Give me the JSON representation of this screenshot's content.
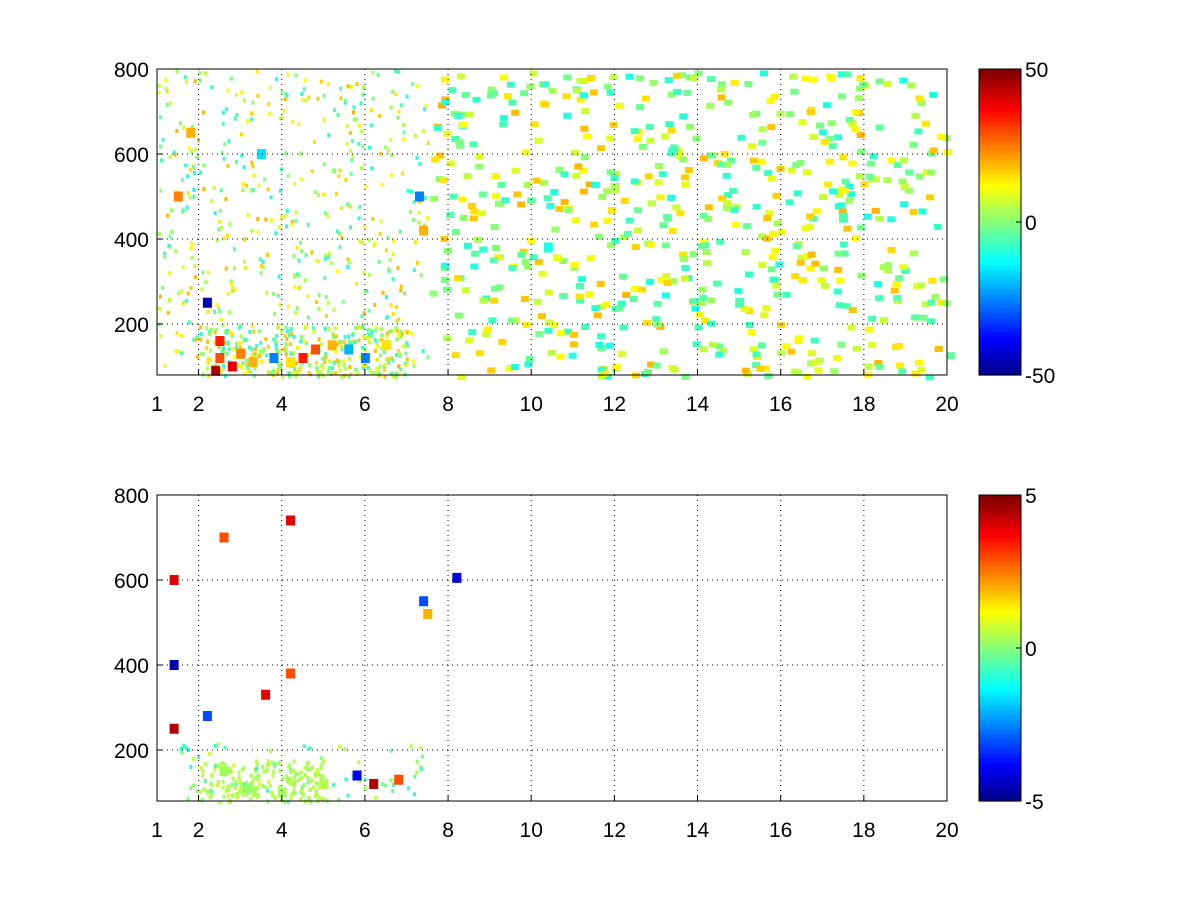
{
  "figure": {
    "background": "#ffffff"
  },
  "chart_data": [
    {
      "type": "heatmap",
      "title": "",
      "xlabel": "",
      "ylabel": "",
      "xlim": [
        1,
        20
      ],
      "ylim": [
        80,
        800
      ],
      "x_ticks": [
        1,
        2,
        4,
        6,
        8,
        10,
        12,
        14,
        16,
        18,
        20
      ],
      "y_ticks": [
        200,
        400,
        600,
        800
      ],
      "grid": true,
      "grid_style": "dotted",
      "colormap": "jet",
      "colorbar": {
        "limits": [
          -50,
          50
        ],
        "ticks": [
          50,
          0,
          -50
        ]
      },
      "approximate_cells": [
        {
          "x": 2.5,
          "y": 160,
          "v": 35
        },
        {
          "x": 2.5,
          "y": 120,
          "v": 30
        },
        {
          "x": 2.8,
          "y": 100,
          "v": 40
        },
        {
          "x": 2.4,
          "y": 90,
          "v": 45
        },
        {
          "x": 3.0,
          "y": 130,
          "v": 25
        },
        {
          "x": 3.3,
          "y": 110,
          "v": 20
        },
        {
          "x": 2.2,
          "y": 250,
          "v": -45
        },
        {
          "x": 3.8,
          "y": 120,
          "v": -25
        },
        {
          "x": 4.2,
          "y": 110,
          "v": 15
        },
        {
          "x": 4.5,
          "y": 120,
          "v": 35
        },
        {
          "x": 4.8,
          "y": 140,
          "v": 30
        },
        {
          "x": 5.2,
          "y": 150,
          "v": 20
        },
        {
          "x": 5.6,
          "y": 140,
          "v": -20
        },
        {
          "x": 6.0,
          "y": 120,
          "v": -25
        },
        {
          "x": 6.5,
          "y": 150,
          "v": 15
        },
        {
          "x": 7.3,
          "y": 500,
          "v": -25
        },
        {
          "x": 7.4,
          "y": 420,
          "v": 20
        },
        {
          "x": 1.5,
          "y": 500,
          "v": 25
        },
        {
          "x": 1.8,
          "y": 650,
          "v": 20
        },
        {
          "x": 3.5,
          "y": 600,
          "v": -15
        },
        {
          "x": 10.4,
          "y": 380,
          "v": -10
        },
        {
          "x": 12.0,
          "y": 520,
          "v": 5
        },
        {
          "x": 15.0,
          "y": 250,
          "v": -5
        },
        {
          "x": 17.5,
          "y": 450,
          "v": -5
        }
      ]
    },
    {
      "type": "heatmap",
      "title": "",
      "xlabel": "",
      "ylabel": "",
      "xlim": [
        1,
        20
      ],
      "ylim": [
        80,
        800
      ],
      "x_ticks": [
        1,
        2,
        4,
        6,
        8,
        10,
        12,
        14,
        16,
        18,
        20
      ],
      "y_ticks": [
        200,
        400,
        600,
        800
      ],
      "grid": true,
      "grid_style": "dotted",
      "colormap": "jet",
      "colorbar": {
        "limits": [
          -5,
          5
        ],
        "ticks": [
          5,
          0,
          -5
        ]
      },
      "approximate_cells": [
        {
          "x": 1.4,
          "y": 600,
          "v": 4
        },
        {
          "x": 1.4,
          "y": 400,
          "v": -4.5
        },
        {
          "x": 1.4,
          "y": 250,
          "v": 4.5
        },
        {
          "x": 2.2,
          "y": 280,
          "v": -3
        },
        {
          "x": 2.6,
          "y": 700,
          "v": 3
        },
        {
          "x": 3.6,
          "y": 330,
          "v": 4
        },
        {
          "x": 4.2,
          "y": 740,
          "v": 4
        },
        {
          "x": 4.2,
          "y": 380,
          "v": 3
        },
        {
          "x": 5.8,
          "y": 140,
          "v": -4
        },
        {
          "x": 6.2,
          "y": 120,
          "v": 4.5
        },
        {
          "x": 6.8,
          "y": 130,
          "v": 3
        },
        {
          "x": 7.4,
          "y": 550,
          "v": -3
        },
        {
          "x": 7.5,
          "y": 520,
          "v": 2
        },
        {
          "x": 8.2,
          "y": 605,
          "v": -4
        },
        {
          "x": 2.6,
          "y": 150,
          "v": 0.3
        },
        {
          "x": 3.2,
          "y": 110,
          "v": 0.2
        },
        {
          "x": 4.0,
          "y": 100,
          "v": 0.4
        },
        {
          "x": 5.0,
          "y": 120,
          "v": 0.5
        }
      ]
    }
  ]
}
